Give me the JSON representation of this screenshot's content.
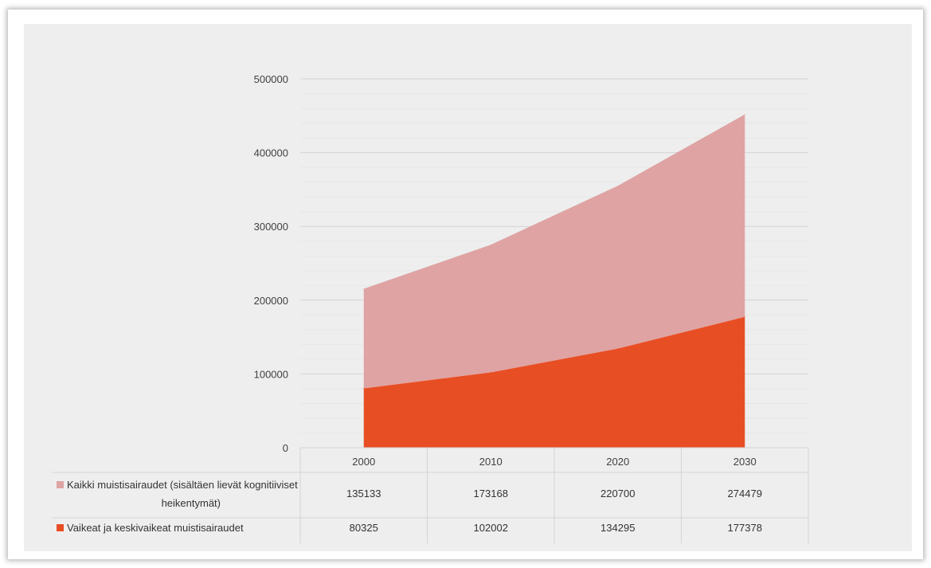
{
  "chart_data": {
    "type": "area",
    "stacked": true,
    "categories": [
      "2000",
      "2010",
      "2020",
      "2030"
    ],
    "series": [
      {
        "name": "Vaikeat ja keskivaikeat muistisairaudet",
        "values": [
          80325,
          102002,
          134295,
          177378
        ],
        "color": "#e84e24"
      },
      {
        "name": "Kaikki muistisairaudet (sisältäen lievät kognitiiviset heikentymät)",
        "name_lines": [
          "Kaikki muistisairaudet (sisältäen lievät kognitiiviset",
          "heikentymät)"
        ],
        "values": [
          135133,
          173168,
          220700,
          274479
        ],
        "color": "#dfa3a3"
      }
    ],
    "yticks": [
      "0",
      "100000",
      "200000",
      "300000",
      "400000",
      "500000"
    ],
    "ylim": [
      0,
      500000
    ],
    "grid": true,
    "legend": "data-table-below"
  }
}
